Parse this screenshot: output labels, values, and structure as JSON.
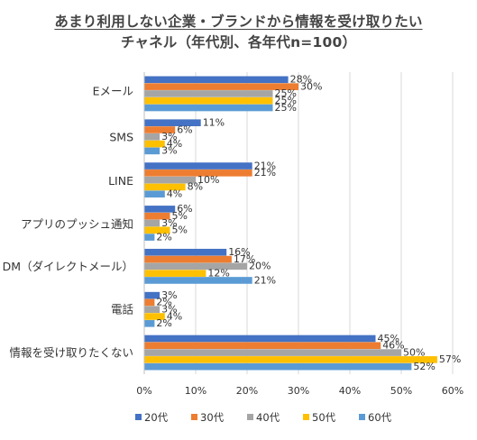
{
  "chart_data": {
    "type": "bar",
    "orientation": "horizontal",
    "title_line1": "あまり利用しない企業・ブランドから情報を受け取りたい",
    "title_line2": "チャネル（年代別、各年代n=100）",
    "categories": [
      "Eメール",
      "SMS",
      "LINE",
      "アプリのプッシュ通知",
      "DM（ダイレクトメール）",
      "電話",
      "情報を受け取りたくない"
    ],
    "series": [
      {
        "name": "20代",
        "color": "#4472C4",
        "values": [
          28,
          11,
          21,
          6,
          16,
          3,
          45
        ]
      },
      {
        "name": "30代",
        "color": "#ED7D31",
        "values": [
          30,
          6,
          21,
          5,
          17,
          2,
          46
        ]
      },
      {
        "name": "40代",
        "color": "#A5A5A5",
        "values": [
          25,
          3,
          10,
          3,
          20,
          3,
          50
        ]
      },
      {
        "name": "50代",
        "color": "#FFC000",
        "values": [
          25,
          4,
          8,
          5,
          12,
          4,
          57
        ]
      },
      {
        "name": "60代",
        "color": "#5B9BD5",
        "values": [
          25,
          3,
          4,
          2,
          21,
          2,
          52
        ]
      }
    ],
    "value_suffix": "%",
    "xlim": [
      0,
      60
    ],
    "xticks": [
      "0%",
      "10%",
      "20%",
      "30%",
      "40%",
      "50%",
      "60%"
    ],
    "grid": true,
    "legend_position": "bottom"
  }
}
